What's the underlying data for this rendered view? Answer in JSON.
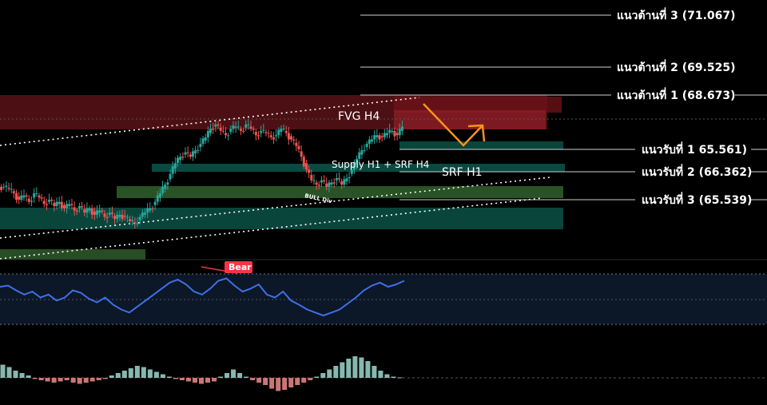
{
  "chart_data": {
    "type": "candlestick",
    "colors": {
      "up": "#26a69a",
      "down": "#ef5350",
      "resistance_zone": "#8b1e24",
      "support_zone": "#0b4d43",
      "green_zone": "#2e5b2a",
      "oscillator": "#3f6fe8",
      "arrow": "#f7931a",
      "bear_tag": "#f23645"
    },
    "resistance_levels": [
      {
        "label": "แนวต้านที่ 3 (71.067)",
        "value": 71.067
      },
      {
        "label": "แนวต้านที่ 2 (69.525)",
        "value": 69.525
      },
      {
        "label": "แนวต้านที่ 1 (68.673)",
        "value": 68.673
      }
    ],
    "support_levels": [
      {
        "label": "แนวรับที่ 1  65.561)",
        "value": 65.561
      },
      {
        "label": "แนวรับที่ 2 (66.362)",
        "value": 66.362
      },
      {
        "label": "แนวรับที่ 3 (65.539)",
        "value": 65.539
      }
    ],
    "zones": [
      {
        "label": "FVG H4"
      },
      {
        "label": "Supply H1 + SRF H4"
      },
      {
        "label": "SRF H1"
      },
      {
        "label": "BULL Div"
      }
    ],
    "oscillator_tag": "Bear",
    "price_path": [
      65.2,
      65.1,
      64.9,
      64.6,
      64.8,
      64.5,
      64.9,
      64.7,
      64.4,
      64.6,
      64.3,
      64.5,
      64.2,
      64.4,
      64.1,
      64.3,
      64.0,
      64.2,
      63.9,
      64.1,
      63.8,
      64.0,
      63.7,
      63.9,
      63.8,
      63.6,
      63.5,
      63.8,
      64.0,
      64.2,
      64.5,
      64.9,
      65.3,
      65.8,
      66.3,
      66.6,
      66.8,
      66.6,
      66.9,
      67.2,
      67.5,
      67.9,
      68.1,
      67.8,
      67.6,
      67.9,
      68.0,
      67.8,
      68.1,
      67.9,
      67.6,
      67.8,
      67.7,
      67.5,
      67.6,
      67.9,
      67.7,
      67.4,
      67.1,
      66.6,
      66.0,
      65.5,
      65.3,
      65.5,
      65.2,
      65.4,
      65.6,
      65.3,
      65.6,
      66.0,
      66.5,
      66.9,
      67.2,
      67.4,
      67.6,
      67.5,
      67.7,
      67.8,
      67.6,
      68.0
    ],
    "oscillator": [
      0.68,
      0.7,
      0.62,
      0.55,
      0.6,
      0.5,
      0.55,
      0.45,
      0.5,
      0.62,
      0.58,
      0.48,
      0.42,
      0.5,
      0.38,
      0.3,
      0.25,
      0.35,
      0.45,
      0.55,
      0.65,
      0.75,
      0.8,
      0.72,
      0.6,
      0.55,
      0.65,
      0.78,
      0.82,
      0.7,
      0.6,
      0.65,
      0.72,
      0.55,
      0.5,
      0.6,
      0.45,
      0.38,
      0.3,
      0.25,
      0.2,
      0.25,
      0.3,
      0.4,
      0.5,
      0.62,
      0.7,
      0.75,
      0.68,
      0.72,
      0.78
    ],
    "histogram": [
      0.55,
      0.45,
      0.3,
      0.2,
      0.1,
      -0.05,
      -0.1,
      -0.15,
      -0.2,
      -0.15,
      -0.1,
      -0.2,
      -0.25,
      -0.2,
      -0.15,
      -0.1,
      -0.05,
      0.1,
      0.2,
      0.3,
      0.4,
      0.5,
      0.45,
      0.35,
      0.25,
      0.15,
      0.05,
      -0.05,
      -0.1,
      -0.15,
      -0.2,
      -0.25,
      -0.2,
      -0.15,
      0.05,
      0.2,
      0.35,
      0.2,
      0.05,
      -0.1,
      -0.2,
      -0.3,
      -0.45,
      -0.55,
      -0.5,
      -0.4,
      -0.3,
      -0.2,
      -0.1,
      0.05,
      0.2,
      0.35,
      0.5,
      0.65,
      0.8,
      0.9,
      0.85,
      0.7,
      0.5,
      0.3,
      0.15,
      0.05,
      0.02
    ]
  }
}
